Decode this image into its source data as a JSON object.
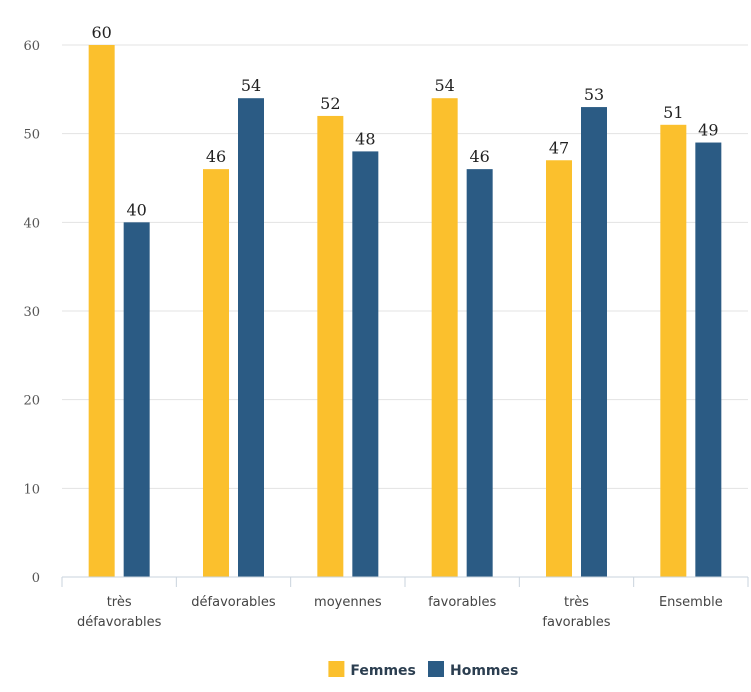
{
  "chart_data": {
    "type": "bar",
    "categories": [
      [
        "très",
        "défavorables"
      ],
      [
        "défavorables"
      ],
      [
        "moyennes"
      ],
      [
        "favorables"
      ],
      [
        "très",
        "favorables"
      ],
      [
        "Ensemble"
      ]
    ],
    "series": [
      {
        "name": "Femmes",
        "values": [
          60,
          46,
          52,
          54,
          47,
          51
        ],
        "color": "#FBC02D"
      },
      {
        "name": "Hommes",
        "values": [
          40,
          54,
          48,
          46,
          53,
          49
        ],
        "color": "#2B5B84"
      }
    ],
    "ylim": [
      0,
      60
    ],
    "yticks": [
      0,
      10,
      20,
      30,
      40,
      50,
      60
    ],
    "grid": true,
    "legend": "bottom-center",
    "data_labels": true
  }
}
